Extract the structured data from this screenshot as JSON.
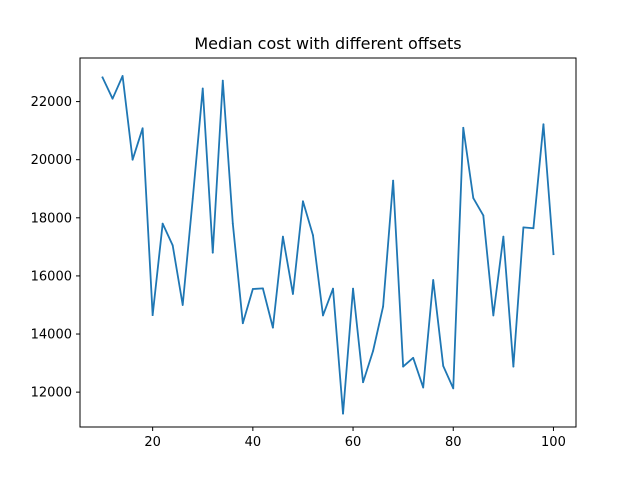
{
  "chart_data": {
    "type": "line",
    "title": "Median cost with different offsets",
    "xlabel": "",
    "ylabel": "",
    "xlim": [
      5.5,
      104.5
    ],
    "ylim": [
      10800,
      23500
    ],
    "xticks": [
      20,
      40,
      60,
      80,
      100
    ],
    "xtick_labels": [
      "20",
      "40",
      "60",
      "80",
      "100"
    ],
    "yticks": [
      12000,
      14000,
      16000,
      18000,
      20000,
      22000
    ],
    "ytick_labels": [
      "12000",
      "14000",
      "16000",
      "18000",
      "20000",
      "22000"
    ],
    "grid": false,
    "series": [
      {
        "color": "#1f77b4",
        "x": [
          10,
          12,
          14,
          16,
          18,
          20,
          22,
          24,
          26,
          28,
          30,
          32,
          34,
          36,
          38,
          40,
          42,
          44,
          46,
          48,
          50,
          52,
          54,
          56,
          58,
          60,
          62,
          64,
          66,
          68,
          70,
          72,
          74,
          76,
          78,
          80,
          82,
          84,
          86,
          88,
          90,
          92,
          94,
          96,
          98,
          100
        ],
        "y": [
          22830,
          22100,
          22880,
          20000,
          21080,
          14650,
          17800,
          17050,
          15000,
          18650,
          22450,
          16800,
          22720,
          17800,
          14370,
          15550,
          15570,
          14220,
          17350,
          15380,
          18570,
          17400,
          14640,
          15560,
          11260,
          15560,
          12340,
          13420,
          14950,
          19280,
          12880,
          13180,
          12160,
          15860,
          12900,
          12130,
          21100,
          18680,
          18080,
          14640,
          17350,
          12880,
          17670,
          17640,
          21220,
          16750
        ]
      }
    ]
  }
}
